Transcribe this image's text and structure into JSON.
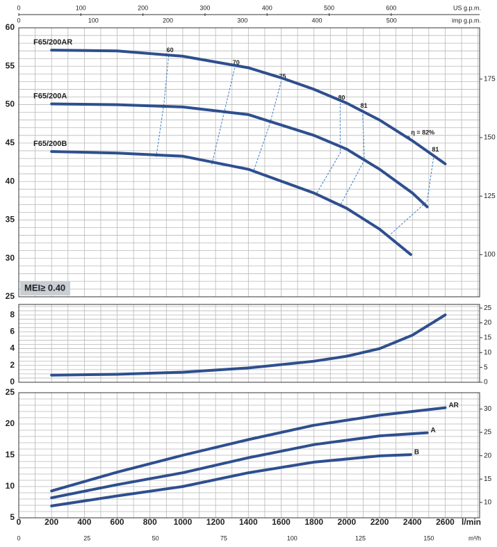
{
  "chart_data": [
    {
      "type": "line",
      "ylim": [
        25,
        60
      ],
      "yticks": [
        25,
        30,
        35,
        40,
        45,
        50,
        55,
        60
      ],
      "y_minor_step": 1,
      "y2lim": [
        82,
        196.9
      ],
      "y2ticks": [
        100,
        125,
        150,
        175
      ],
      "grid": true,
      "line_width": 4,
      "series": [
        {
          "name": "F65/200AR",
          "color": "#2e4f8e",
          "x": [
            200,
            600,
            1000,
            1400,
            1600,
            1800,
            2000,
            2200,
            2400,
            2600
          ],
          "values": [
            57.1,
            57.0,
            56.3,
            54.8,
            53.5,
            52.0,
            50.2,
            48.0,
            45.3,
            42.3
          ]
        },
        {
          "name": "F65/200A",
          "color": "#2e4f8e",
          "x": [
            200,
            600,
            1000,
            1400,
            1800,
            2000,
            2200,
            2400,
            2490
          ],
          "values": [
            50.1,
            50.0,
            49.7,
            48.7,
            46.0,
            44.2,
            41.6,
            38.5,
            36.7
          ]
        },
        {
          "name": "F65/200B",
          "color": "#2e4f8e",
          "x": [
            200,
            600,
            1000,
            1400,
            1800,
            2000,
            2200,
            2390
          ],
          "values": [
            43.9,
            43.7,
            43.3,
            41.6,
            38.5,
            36.5,
            33.8,
            30.5
          ]
        }
      ],
      "efficiency_color": "#3a7ec8",
      "efficiency_lines": [
        {
          "label": "60",
          "x": [
            914,
            885,
            838
          ],
          "values": [
            56.4,
            50.1,
            43.2
          ]
        },
        {
          "label": "70",
          "x": [
            1317,
            1249,
            1177
          ],
          "values": [
            54.8,
            48.7,
            42.2
          ]
        },
        {
          "label": "75",
          "x": [
            1600,
            1528,
            1431
          ],
          "values": [
            53.0,
            47.3,
            41.3
          ]
        },
        {
          "label": "80",
          "x": [
            1960,
            1960,
            1812
          ],
          "values": [
            50.2,
            43.7,
            38.3
          ]
        },
        {
          "label": "81",
          "x": [
            2096,
            2108,
            1960
          ],
          "values": [
            49.2,
            42.8,
            36.9
          ]
        },
        {
          "label": "81",
          "x": [
            2532,
            2489,
            2265
          ],
          "values": [
            43.5,
            37.4,
            33.1
          ]
        }
      ],
      "annotations": [
        {
          "text": "η = 82%",
          "x": 2375,
          "y": 45.7
        }
      ],
      "label_box": "MEI≥ 0.40"
    },
    {
      "type": "line",
      "ylim": [
        0,
        9.25
      ],
      "yticks": [
        0,
        2,
        4,
        6,
        8
      ],
      "y_minor_step": 0.5,
      "y2lim": [
        0,
        26.2
      ],
      "y2ticks": [
        0,
        5,
        10,
        15,
        20,
        25
      ],
      "grid": true,
      "line_width": 4,
      "series": [
        {
          "color": "#2e4f8e",
          "x": [
            200,
            600,
            1000,
            1400,
            1800,
            2000,
            2200,
            2400,
            2600
          ],
          "values": [
            0.85,
            0.95,
            1.2,
            1.7,
            2.5,
            3.1,
            4.0,
            5.6,
            8.0
          ]
        }
      ]
    },
    {
      "type": "line",
      "ylim": [
        5,
        25
      ],
      "yticks": [
        5,
        10,
        15,
        20,
        25
      ],
      "y_minor_step": 1,
      "y2lim": [
        6.7,
        33.5
      ],
      "y2ticks": [
        10,
        15,
        20,
        25,
        30
      ],
      "grid": true,
      "line_width": 4,
      "series": [
        {
          "name": "AR",
          "color": "#2e4f8e",
          "x": [
            200,
            600,
            1000,
            1400,
            1800,
            2200,
            2600
          ],
          "values": [
            9.3,
            12.3,
            15.0,
            17.5,
            19.8,
            21.4,
            22.6
          ]
        },
        {
          "name": "A",
          "color": "#2e4f8e",
          "x": [
            200,
            600,
            1000,
            1400,
            1800,
            2200,
            2490
          ],
          "values": [
            8.2,
            10.3,
            12.2,
            14.6,
            16.7,
            18.1,
            18.6
          ]
        },
        {
          "name": "B",
          "color": "#2e4f8e",
          "x": [
            200,
            600,
            1000,
            1400,
            1800,
            2200,
            2390
          ],
          "values": [
            6.9,
            8.5,
            10.0,
            12.2,
            13.9,
            14.9,
            15.1
          ]
        }
      ]
    }
  ],
  "x_axes": [
    {
      "label": "l/min",
      "xlim": [
        0,
        2810
      ],
      "xticks": [
        0,
        200,
        400,
        600,
        800,
        1000,
        1200,
        1400,
        1600,
        1800,
        2000,
        2200,
        2400,
        2600
      ],
      "minor_step": 100
    },
    {
      "label": "m³/h",
      "xlim": [
        0,
        168.6
      ],
      "xticks": [
        0,
        25,
        50,
        75,
        100,
        125,
        150
      ]
    },
    {
      "label": "US g.p.m.",
      "xlim": [
        0,
        742.4
      ],
      "xticks": [
        0,
        100,
        200,
        300,
        400,
        500,
        600
      ]
    },
    {
      "label": "imp g.p.m.",
      "xlim": [
        0,
        618.1
      ],
      "xticks": [
        0,
        100,
        200,
        300,
        400,
        500
      ]
    }
  ]
}
